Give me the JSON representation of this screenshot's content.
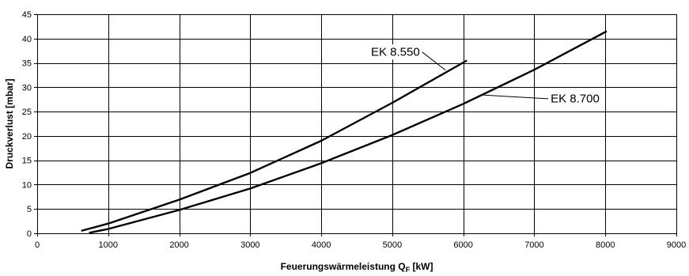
{
  "chart_data": {
    "type": "line",
    "title": "",
    "xlabel_main": "Feuerungswärmeleistung Q",
    "xlabel_sub": "F",
    "xlabel_unit": " [kW]",
    "ylabel": "Druckverlust [mbar]",
    "xlim": [
      0,
      9000
    ],
    "ylim": [
      0,
      45
    ],
    "xticks": [
      0,
      1000,
      2000,
      3000,
      4000,
      5000,
      6000,
      7000,
      8000,
      9000
    ],
    "yticks": [
      0,
      5,
      10,
      15,
      20,
      25,
      30,
      35,
      40,
      45
    ],
    "grid": true,
    "legend": "none",
    "series": [
      {
        "name": "EK 8.550",
        "x": [
          620,
          1000,
          2000,
          3000,
          4000,
          5000,
          6050
        ],
        "y": [
          0.5,
          2.0,
          6.9,
          12.4,
          19.0,
          26.8,
          35.5
        ],
        "label_data_pos": [
          4700,
          36.5
        ],
        "label_anchor_data": [
          5750,
          33.5
        ]
      },
      {
        "name": "EK 8.700",
        "x": [
          730,
          1000,
          2000,
          3000,
          4000,
          5000,
          6000,
          7000,
          8020
        ],
        "y": [
          0.1,
          0.9,
          4.8,
          9.2,
          14.4,
          20.2,
          26.6,
          33.6,
          41.5
        ],
        "label_data_pos": [
          7230,
          26.9
        ],
        "label_anchor_data": [
          6280,
          28.4
        ]
      }
    ]
  }
}
